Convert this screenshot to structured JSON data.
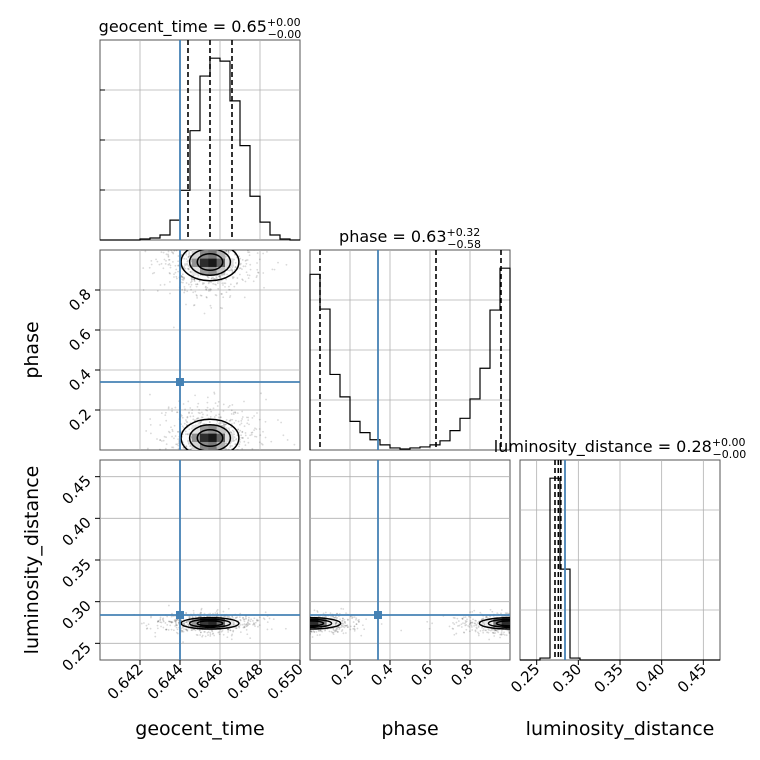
{
  "chart_data": {
    "type": "corner",
    "parameters": [
      "geocent_time",
      "phase",
      "luminosity_distance"
    ],
    "truth_color": "#4682b4",
    "truths": {
      "geocent_time": 0.644,
      "phase": 0.34,
      "luminosity_distance": 0.284
    },
    "axes": {
      "geocent_time": {
        "range": [
          0.64,
          0.65
        ],
        "ticks": [
          0.642,
          0.644,
          0.646,
          0.648,
          0.65
        ],
        "tick_labels": [
          "0.642",
          "0.644",
          "0.646",
          "0.648",
          "0.650"
        ],
        "label": "geocent_time"
      },
      "phase": {
        "range": [
          0.0,
          1.0
        ],
        "ticks": [
          0.2,
          0.4,
          0.6,
          0.8
        ],
        "tick_labels": [
          "0.2",
          "0.4",
          "0.6",
          "0.8"
        ],
        "label": "phase"
      },
      "luminosity_distance": {
        "range": [
          0.23,
          0.47
        ],
        "ticks": [
          0.25,
          0.3,
          0.35,
          0.4,
          0.45
        ],
        "tick_labels": [
          "0.25",
          "0.30",
          "0.35",
          "0.40",
          "0.45"
        ],
        "label": "luminosity_distance"
      }
    },
    "titles": [
      {
        "param": "geocent_time",
        "text": "geocent_time = 0.65",
        "sup": "+0.00",
        "sub": "−0.00"
      },
      {
        "param": "phase",
        "text": "phase = 0.63",
        "sup": "+0.32",
        "sub": "−0.58"
      },
      {
        "param": "luminosity_distance",
        "text": "luminosity_distance = 0.28",
        "sup": "+0.00",
        "sub": "−0.00"
      }
    ],
    "quantile_lines": {
      "geocent_time": [
        0.6444,
        0.6455,
        0.6466
      ],
      "phase": [
        0.05,
        0.63,
        0.955
      ],
      "luminosity_distance": [
        0.272,
        0.276,
        0.279
      ]
    },
    "histograms": {
      "geocent_time": {
        "edges": [
          0.64,
          0.6405,
          0.641,
          0.6415,
          0.642,
          0.6425,
          0.643,
          0.6435,
          0.644,
          0.6445,
          0.645,
          0.6455,
          0.646,
          0.6465,
          0.647,
          0.6475,
          0.648,
          0.6485,
          0.649,
          0.6495,
          0.65
        ],
        "counts": [
          0,
          0,
          0,
          0,
          1,
          2,
          5,
          20,
          50,
          110,
          165,
          183,
          180,
          140,
          95,
          44,
          18,
          5,
          1,
          0
        ]
      },
      "phase": {
        "edges": [
          0.0,
          0.05,
          0.1,
          0.15,
          0.2,
          0.25,
          0.3,
          0.35,
          0.4,
          0.45,
          0.5,
          0.55,
          0.6,
          0.65,
          0.7,
          0.75,
          0.8,
          0.85,
          0.9,
          0.95,
          1.0
        ],
        "counts": [
          172,
          138,
          74,
          52,
          28,
          17,
          10,
          5,
          2,
          1,
          2,
          3,
          5,
          9,
          19,
          31,
          50,
          80,
          137,
          178
        ]
      },
      "luminosity_distance": {
        "edges": [
          0.23,
          0.242,
          0.254,
          0.266,
          0.278,
          0.29,
          0.302,
          0.314,
          0.326,
          0.338,
          0.35,
          0.362,
          0.374,
          0.386,
          0.398,
          0.41,
          0.422,
          0.434,
          0.446,
          0.458,
          0.47
        ],
        "counts": [
          0,
          0,
          2,
          190,
          95,
          2,
          0,
          0,
          0,
          0,
          0,
          0,
          0,
          0,
          0,
          0,
          0,
          0,
          0,
          0
        ]
      }
    },
    "densities": {
      "phase_vs_geocent_time": {
        "x": "geocent_time",
        "y": "phase",
        "blobs": [
          {
            "cx": 0.6455,
            "cy": 0.94,
            "sx": 0.00085,
            "sy": 0.055,
            "ry": [
              0.62,
              1.0
            ]
          },
          {
            "cx": 0.6455,
            "cy": 0.06,
            "sx": 0.00085,
            "sy": 0.055,
            "ry": [
              0.0,
              0.38
            ]
          }
        ]
      },
      "luminosity_distance_vs_geocent_time": {
        "x": "geocent_time",
        "y": "luminosity_distance",
        "blobs": [
          {
            "cx": 0.6455,
            "cy": 0.274,
            "sx": 0.00085,
            "sy": 0.004,
            "ry": [
              0.255,
              0.295
            ]
          }
        ]
      },
      "luminosity_distance_vs_phase": {
        "x": "phase",
        "y": "luminosity_distance",
        "blobs": [
          {
            "cx": 0.0,
            "cy": 0.274,
            "sx": 0.09,
            "sy": 0.004,
            "ry": [
              0.255,
              0.295
            ]
          },
          {
            "cx": 1.0,
            "cy": 0.274,
            "sx": 0.09,
            "sy": 0.004,
            "ry": [
              0.255,
              0.295
            ]
          }
        ]
      }
    },
    "grid": true
  }
}
